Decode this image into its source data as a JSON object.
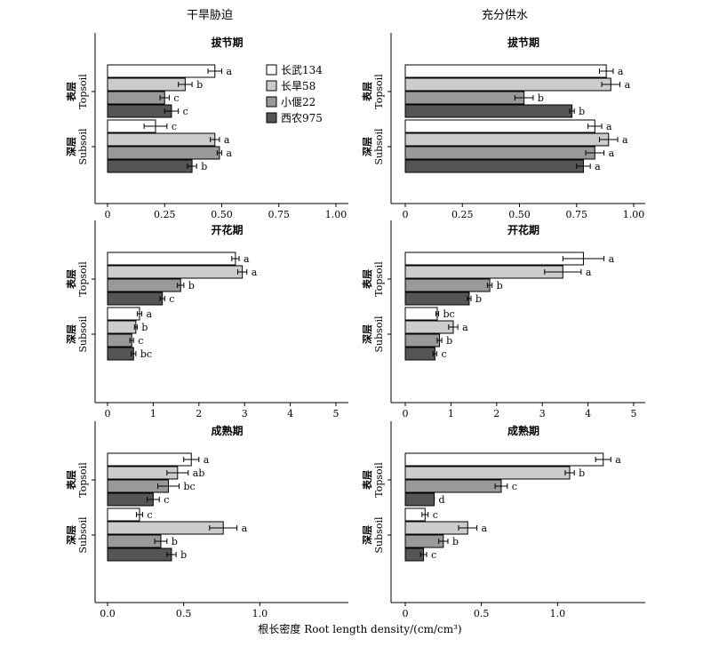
{
  "figure": {
    "xlabel": "根长密度 Root length density/(cm/cm³)",
    "columns": [
      "干旱胁迫",
      "充分供水"
    ],
    "group_labels": [
      {
        "cn": "表层",
        "en": "Topsoil"
      },
      {
        "cn": "深层",
        "en": "Subsoil"
      }
    ]
  },
  "legend": {
    "entries": [
      {
        "label": "长武134",
        "color": "#ffffff"
      },
      {
        "label": "长旱58",
        "color": "#cccccc"
      },
      {
        "label": "小偃22",
        "color": "#999999"
      },
      {
        "label": "西农975",
        "color": "#555555"
      }
    ]
  },
  "chart_data": [
    {
      "type": "bar",
      "orientation": "horizontal",
      "title": "拔节期",
      "column": "干旱胁迫",
      "xlim": [
        0,
        1.0
      ],
      "xticks": [
        "0",
        "0.25",
        "0.50",
        "0.75",
        "1.00"
      ],
      "groups": [
        "Topsoil",
        "Subsoil"
      ],
      "series": [
        {
          "name": "长武134",
          "values": [
            0.47,
            0.21
          ],
          "errors": [
            0.03,
            0.05
          ],
          "letters": [
            "a",
            "c"
          ]
        },
        {
          "name": "长旱58",
          "values": [
            0.34,
            0.47
          ],
          "errors": [
            0.03,
            0.02
          ],
          "letters": [
            "b",
            "a"
          ]
        },
        {
          "name": "小偃22",
          "values": [
            0.25,
            0.49
          ],
          "errors": [
            0.02,
            0.01
          ],
          "letters": [
            "c",
            "a"
          ]
        },
        {
          "name": "西农975",
          "values": [
            0.28,
            0.37
          ],
          "errors": [
            0.03,
            0.02
          ],
          "letters": [
            "c",
            "b"
          ]
        }
      ]
    },
    {
      "type": "bar",
      "orientation": "horizontal",
      "title": "拔节期",
      "column": "充分供水",
      "xlim": [
        0,
        1.0
      ],
      "xticks": [
        "0",
        "0.25",
        "0.50",
        "0.75",
        "1.00"
      ],
      "groups": [
        "Topsoil",
        "Subsoil"
      ],
      "series": [
        {
          "name": "长武134",
          "values": [
            0.88,
            0.83
          ],
          "errors": [
            0.03,
            0.03
          ],
          "letters": [
            "a",
            "a"
          ]
        },
        {
          "name": "长旱58",
          "values": [
            0.9,
            0.89
          ],
          "errors": [
            0.04,
            0.04
          ],
          "letters": [
            "a",
            "a"
          ]
        },
        {
          "name": "小偃22",
          "values": [
            0.52,
            0.83
          ],
          "errors": [
            0.04,
            0.04
          ],
          "letters": [
            "b",
            "a"
          ]
        },
        {
          "name": "西农975",
          "values": [
            0.73,
            0.78
          ],
          "errors": [
            0.01,
            0.03
          ],
          "letters": [
            "b",
            "a"
          ]
        }
      ]
    },
    {
      "type": "bar",
      "orientation": "horizontal",
      "title": "开花期",
      "column": "干旱胁迫",
      "xlim": [
        0,
        5
      ],
      "xticks": [
        "0",
        "1",
        "2",
        "3",
        "4",
        "5"
      ],
      "groups": [
        "Topsoil",
        "Subsoil"
      ],
      "series": [
        {
          "name": "长武134",
          "values": [
            2.8,
            0.7
          ],
          "errors": [
            0.08,
            0.05
          ],
          "letters": [
            "a",
            "a"
          ]
        },
        {
          "name": "长旱58",
          "values": [
            2.95,
            0.62
          ],
          "errors": [
            0.1,
            0.03
          ],
          "letters": [
            "a",
            "b"
          ]
        },
        {
          "name": "小偃22",
          "values": [
            1.6,
            0.53
          ],
          "errors": [
            0.07,
            0.04
          ],
          "letters": [
            "b",
            "c"
          ]
        },
        {
          "name": "西农975",
          "values": [
            1.2,
            0.57
          ],
          "errors": [
            0.05,
            0.05
          ],
          "letters": [
            "c",
            "bc"
          ]
        }
      ]
    },
    {
      "type": "bar",
      "orientation": "horizontal",
      "title": "开花期",
      "column": "充分供水",
      "xlim": [
        0,
        5
      ],
      "xticks": [
        "0",
        "1",
        "2",
        "3",
        "4",
        "5"
      ],
      "groups": [
        "Topsoil",
        "Subsoil"
      ],
      "series": [
        {
          "name": "长武134",
          "values": [
            3.9,
            0.7
          ],
          "errors": [
            0.45,
            0.03
          ],
          "letters": [
            "a",
            "bc"
          ]
        },
        {
          "name": "长旱58",
          "values": [
            3.45,
            1.05
          ],
          "errors": [
            0.4,
            0.1
          ],
          "letters": [
            "a",
            "a"
          ]
        },
        {
          "name": "小偃22",
          "values": [
            1.85,
            0.75
          ],
          "errors": [
            0.05,
            0.05
          ],
          "letters": [
            "b",
            "b"
          ]
        },
        {
          "name": "西农975",
          "values": [
            1.4,
            0.65
          ],
          "errors": [
            0.04,
            0.04
          ],
          "letters": [
            "b",
            "c"
          ]
        }
      ]
    },
    {
      "type": "bar",
      "orientation": "horizontal",
      "title": "成熟期",
      "column": "干旱胁迫",
      "xlim": [
        0,
        1.5
      ],
      "xticks": [
        "0.0",
        "0.5",
        "1.0"
      ],
      "groups": [
        "Topsoil",
        "Subsoil"
      ],
      "series": [
        {
          "name": "长武134",
          "values": [
            0.55,
            0.21
          ],
          "errors": [
            0.05,
            0.02
          ],
          "letters": [
            "a",
            "c"
          ]
        },
        {
          "name": "长旱58",
          "values": [
            0.46,
            0.76
          ],
          "errors": [
            0.07,
            0.09
          ],
          "letters": [
            "ab",
            "a"
          ]
        },
        {
          "name": "小偃22",
          "values": [
            0.4,
            0.35
          ],
          "errors": [
            0.07,
            0.04
          ],
          "letters": [
            "bc",
            "b"
          ]
        },
        {
          "name": "西农975",
          "values": [
            0.3,
            0.42
          ],
          "errors": [
            0.04,
            0.03
          ],
          "letters": [
            "c",
            "b"
          ]
        }
      ]
    },
    {
      "type": "bar",
      "orientation": "horizontal",
      "title": "成熟期",
      "column": "充分供水",
      "xlim": [
        0,
        1.5
      ],
      "xticks": [
        "0",
        "0.5",
        "1.0"
      ],
      "groups": [
        "Topsoil",
        "Subsoil"
      ],
      "series": [
        {
          "name": "长武134",
          "values": [
            1.3,
            0.13
          ],
          "errors": [
            0.05,
            0.02
          ],
          "letters": [
            "a",
            "c"
          ]
        },
        {
          "name": "长旱58",
          "values": [
            1.08,
            0.41
          ],
          "errors": [
            0.03,
            0.06
          ],
          "letters": [
            "b",
            "a"
          ]
        },
        {
          "name": "小偃22",
          "values": [
            0.63,
            0.25
          ],
          "errors": [
            0.04,
            0.03
          ],
          "letters": [
            "c",
            "b"
          ]
        },
        {
          "name": "西农975",
          "values": [
            0.19,
            0.12
          ],
          "errors": [
            0.0,
            0.02
          ],
          "letters": [
            "d",
            "c"
          ]
        }
      ]
    }
  ]
}
